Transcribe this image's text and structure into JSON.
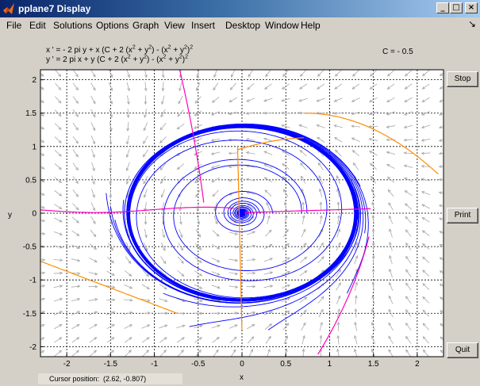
{
  "window": {
    "title": "pplane7 Display",
    "icon": "matlab-logo-icon",
    "controls": {
      "minimize": "_",
      "maximize": "□",
      "close": "×"
    }
  },
  "menubar": {
    "items": [
      "File",
      "Edit",
      "Solutions",
      "Options",
      "Graph",
      "View",
      "Insert",
      "Desktop",
      "Window",
      "Help"
    ],
    "dock_arrow": "↘"
  },
  "equations": {
    "x_prefix": "x ' = - 2 pi y + x (C + 2 (x",
    "x_mid1": " + y",
    "x_mid2": ") - (x",
    "x_mid3": " + y",
    "x_end": ")",
    "y_prefix": "y ' = 2 pi x + y (C + 2 (x",
    "y_mid1": " + y",
    "y_mid2": ") - (x",
    "y_mid3": " + y",
    "y_end": ")",
    "sq": "2",
    "parameter": "C = - 0.5"
  },
  "buttons": {
    "stop": "Stop",
    "print": "Print",
    "quit": "Quit"
  },
  "status": {
    "cursor_label": "Cursor position:",
    "cursor_value": "(2.62, -0.807)"
  },
  "chart_data": {
    "type": "phase-plane",
    "xlabel": "x",
    "ylabel": "y",
    "xlim": [
      -2.3,
      2.3
    ],
    "ylim": [
      -2.15,
      2.15
    ],
    "xticks": [
      -2,
      -1.5,
      -1,
      -0.5,
      0,
      0.5,
      1,
      1.5,
      2
    ],
    "yticks": [
      -2,
      -1.5,
      -1,
      -0.5,
      0,
      0.5,
      1,
      1.5,
      2
    ],
    "xtick_labels": [
      "-2",
      "-1.5",
      "-1",
      "-0.5",
      "0",
      "0.5",
      "1",
      "1.5",
      "2"
    ],
    "ytick_labels": [
      "-2",
      "-1.5",
      "-1",
      "-0.5",
      "0",
      "0.5",
      "1",
      "1.5",
      "2"
    ],
    "grid": true,
    "parameter_C": -0.5,
    "equilibrium": [
      0,
      0
    ],
    "stable_limit_cycle_radius": 1.29,
    "unstable_limit_cycle_radius": 0.71,
    "colors": {
      "trajectory": "#0000ff",
      "nullcline_x": "#ff00bb",
      "nullcline_y": "#ff8c00",
      "direction_field": "#a8a8a8",
      "grid": "#000000"
    }
  }
}
